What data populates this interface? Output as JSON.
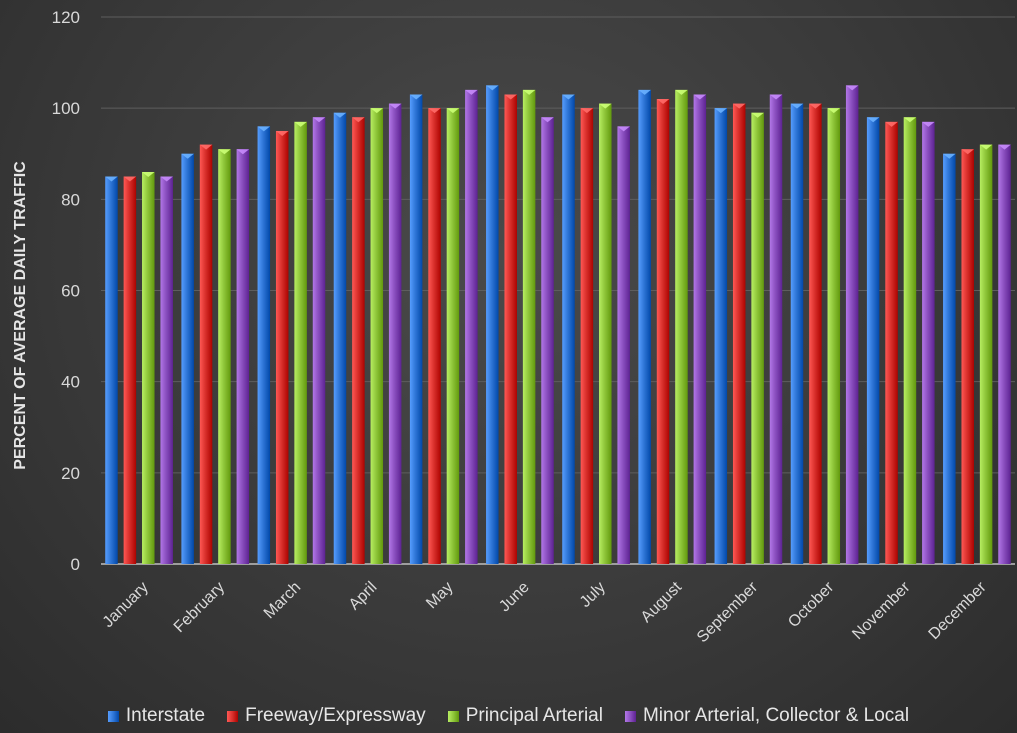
{
  "chart_data": {
    "type": "bar",
    "title": "",
    "xlabel": "",
    "ylabel": "PERCENT OF AVERAGE DAILY TRAFFIC",
    "ylim": [
      0,
      120
    ],
    "yticks": [
      0,
      20,
      40,
      60,
      80,
      100,
      120
    ],
    "grid": true,
    "legend_position": "bottom",
    "categories": [
      "January",
      "February",
      "March",
      "April",
      "May",
      "June",
      "July",
      "August",
      "September",
      "October",
      "November",
      "December"
    ],
    "series": [
      {
        "name": "Interstate",
        "color": "#2e75d6",
        "values": [
          85,
          90,
          96,
          99,
          103,
          105,
          103,
          104,
          100,
          101,
          98,
          90
        ]
      },
      {
        "name": "Freeway/Expressway",
        "color": "#d9302c",
        "values": [
          85,
          92,
          95,
          98,
          100,
          103,
          100,
          102,
          101,
          101,
          97,
          91
        ]
      },
      {
        "name": "Principal Arterial",
        "color": "#8fc63a",
        "values": [
          86,
          91,
          97,
          100,
          100,
          104,
          101,
          104,
          99,
          100,
          98,
          92
        ]
      },
      {
        "name": "Minor Arterial, Collector & Local",
        "color": "#8a4fbf",
        "values": [
          85,
          91,
          98,
          101,
          104,
          98,
          96,
          103,
          103,
          105,
          97,
          92
        ]
      }
    ]
  }
}
